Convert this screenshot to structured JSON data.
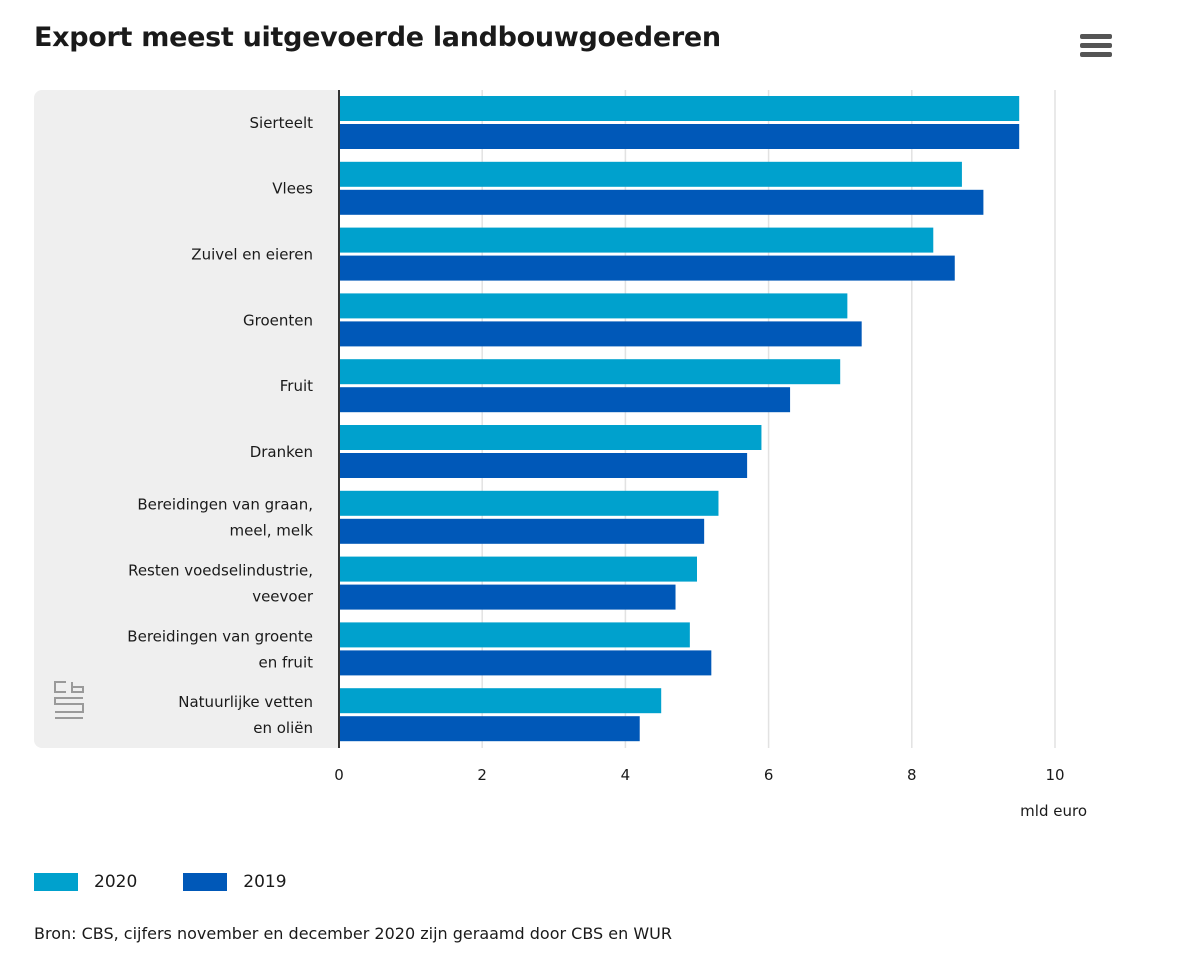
{
  "header": {
    "title": "Export meest uitgevoerde landbouwgoederen",
    "menu_icon": "hamburger-menu-icon"
  },
  "colors": {
    "series_2020": "#00a1cd",
    "series_2019": "#0058b8",
    "plot_bg": "#efefef",
    "grid": "#e2e2e2",
    "axis": "#333333"
  },
  "logo": {
    "icon": "cbs-logo-icon"
  },
  "legend": {
    "items": [
      {
        "label": "2020"
      },
      {
        "label": "2019"
      }
    ]
  },
  "source": "Bron: CBS, cijfers november en december 2020 zijn geraamd door CBS en WUR",
  "chart_data": {
    "type": "bar",
    "orientation": "horizontal",
    "title": "Export meest uitgevoerde landbouwgoederen",
    "xlabel": "mld euro",
    "ylabel": "",
    "xlim": [
      0,
      10
    ],
    "xticks": [
      0,
      2,
      4,
      6,
      8,
      10
    ],
    "grid": true,
    "legend_position": "bottom-left",
    "categories": [
      [
        "Sierteelt"
      ],
      [
        "Vlees"
      ],
      [
        "Zuivel en eieren"
      ],
      [
        "Groenten"
      ],
      [
        "Fruit"
      ],
      [
        "Dranken"
      ],
      [
        "Bereidingen van graan,",
        "meel, melk"
      ],
      [
        "Resten voedselindustrie,",
        "veevoer"
      ],
      [
        "Bereidingen van groente",
        "en fruit"
      ],
      [
        "Natuurlijke vetten",
        "en oliën"
      ]
    ],
    "series": [
      {
        "name": "2020",
        "values": [
          9.5,
          8.7,
          8.3,
          7.1,
          7.0,
          5.9,
          5.3,
          5.0,
          4.9,
          4.5
        ]
      },
      {
        "name": "2019",
        "values": [
          9.5,
          9.0,
          8.6,
          7.3,
          6.3,
          5.7,
          5.1,
          4.7,
          5.2,
          4.2
        ]
      }
    ]
  }
}
